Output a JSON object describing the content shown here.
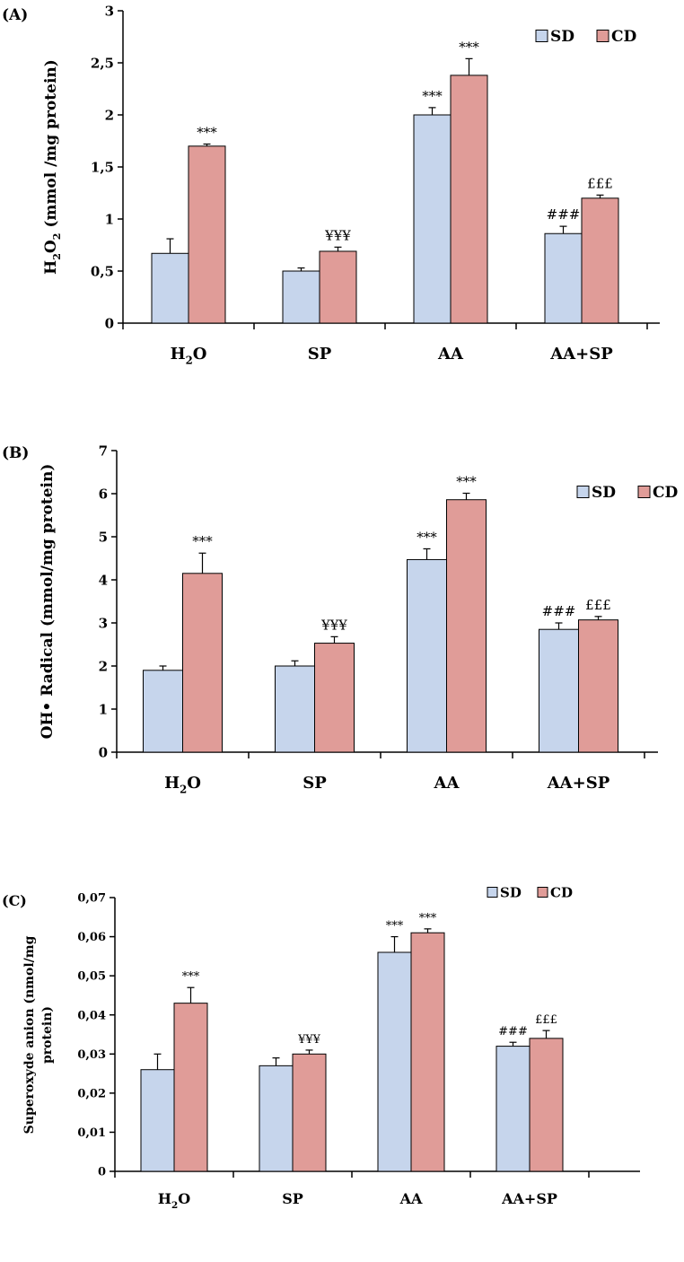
{
  "chart_data": [
    {
      "type": "bar",
      "panel_label": "(A)",
      "categories": [
        "H2O",
        "SP",
        "AA",
        "AA+SP"
      ],
      "category_labels": [
        {
          "main": "H",
          "sub": "2",
          "rest": "O"
        },
        {
          "main": "SP",
          "sub": "",
          "rest": ""
        },
        {
          "main": "AA",
          "sub": "",
          "rest": ""
        },
        {
          "main": "AA+SP",
          "sub": "",
          "rest": ""
        }
      ],
      "ylabel": {
        "parts": [
          {
            "t": "H"
          },
          {
            "t": "2",
            "sub": true
          },
          {
            "t": "O"
          },
          {
            "t": "2",
            "sub": true
          },
          {
            "t": " (mmol /mg protein)"
          }
        ]
      },
      "ylim": [
        0,
        3
      ],
      "yticks": [
        0,
        0.5,
        1,
        1.5,
        2,
        2.5,
        3
      ],
      "ytick_labels": [
        "0",
        "0,5",
        "1",
        "1,5",
        "2",
        "2,5",
        "3"
      ],
      "legend": [
        "SD",
        "CD"
      ],
      "series": [
        {
          "name": "SD",
          "color": "#c6d5ec",
          "values": [
            0.67,
            0.5,
            2.0,
            0.86
          ],
          "errors": [
            0.14,
            0.03,
            0.07,
            0.07
          ],
          "annotations": [
            "",
            "",
            "***",
            "###"
          ]
        },
        {
          "name": "CD",
          "color": "#e09c98",
          "values": [
            1.7,
            0.69,
            2.38,
            1.2
          ],
          "errors": [
            0.02,
            0.04,
            0.16,
            0.03
          ],
          "annotations": [
            "***",
            "¥¥¥",
            "***",
            "£££"
          ]
        }
      ]
    },
    {
      "type": "bar",
      "panel_label": "(B)",
      "categories": [
        "H2O",
        "SP",
        "AA",
        "AA+SP"
      ],
      "category_labels": [
        {
          "main": "H",
          "sub": "2",
          "rest": "O"
        },
        {
          "main": "SP",
          "sub": "",
          "rest": ""
        },
        {
          "main": "AA",
          "sub": "",
          "rest": ""
        },
        {
          "main": "AA+SP",
          "sub": "",
          "rest": ""
        }
      ],
      "ylabel": {
        "parts": [
          {
            "t": "OH• Radical (mmol/mg protein)"
          }
        ]
      },
      "ylim": [
        0,
        7
      ],
      "yticks": [
        0,
        1,
        2,
        3,
        4,
        5,
        6,
        7
      ],
      "ytick_labels": [
        "0",
        "1",
        "2",
        "3",
        "4",
        "5",
        "6",
        "7"
      ],
      "legend": [
        "SD",
        "CD"
      ],
      "series": [
        {
          "name": "SD",
          "color": "#c6d5ec",
          "values": [
            1.9,
            2.0,
            4.47,
            2.85
          ],
          "errors": [
            0.1,
            0.12,
            0.25,
            0.15
          ],
          "annotations": [
            "",
            "",
            "***",
            "###"
          ]
        },
        {
          "name": "CD",
          "color": "#e09c98",
          "values": [
            4.15,
            2.53,
            5.86,
            3.07
          ],
          "errors": [
            0.47,
            0.15,
            0.15,
            0.08
          ],
          "annotations": [
            "***",
            "¥¥¥",
            "***",
            "£££"
          ]
        }
      ]
    },
    {
      "type": "bar",
      "panel_label": "(C)",
      "categories": [
        "H2O",
        "SP",
        "AA",
        "AA+SP"
      ],
      "category_labels": [
        {
          "main": "H",
          "sub": "2",
          "rest": "O"
        },
        {
          "main": "SP",
          "sub": "",
          "rest": ""
        },
        {
          "main": "AA",
          "sub": "",
          "rest": ""
        },
        {
          "main": "AA+SP",
          "sub": "",
          "rest": ""
        }
      ],
      "ylabel": {
        "lines": [
          "Superoxyde anion (nmol/mg",
          "protein)"
        ]
      },
      "ylim": [
        0,
        0.07
      ],
      "yticks": [
        0,
        0.01,
        0.02,
        0.03,
        0.04,
        0.05,
        0.06,
        0.07
      ],
      "ytick_labels": [
        "0",
        "0,01",
        "0,02",
        "0,03",
        "0,04",
        "0,05",
        "0,06",
        "0,07"
      ],
      "legend": [
        "SD",
        "CD"
      ],
      "series": [
        {
          "name": "SD",
          "color": "#c6d5ec",
          "values": [
            0.026,
            0.027,
            0.056,
            0.032
          ],
          "errors": [
            0.004,
            0.002,
            0.004,
            0.001
          ],
          "annotations": [
            "",
            "",
            "***",
            "###"
          ]
        },
        {
          "name": "CD",
          "color": "#e09c98",
          "values": [
            0.043,
            0.03,
            0.061,
            0.034
          ],
          "errors": [
            0.004,
            0.001,
            0.001,
            0.002
          ],
          "annotations": [
            "***",
            "¥¥¥",
            "***",
            "£££"
          ]
        }
      ]
    }
  ]
}
